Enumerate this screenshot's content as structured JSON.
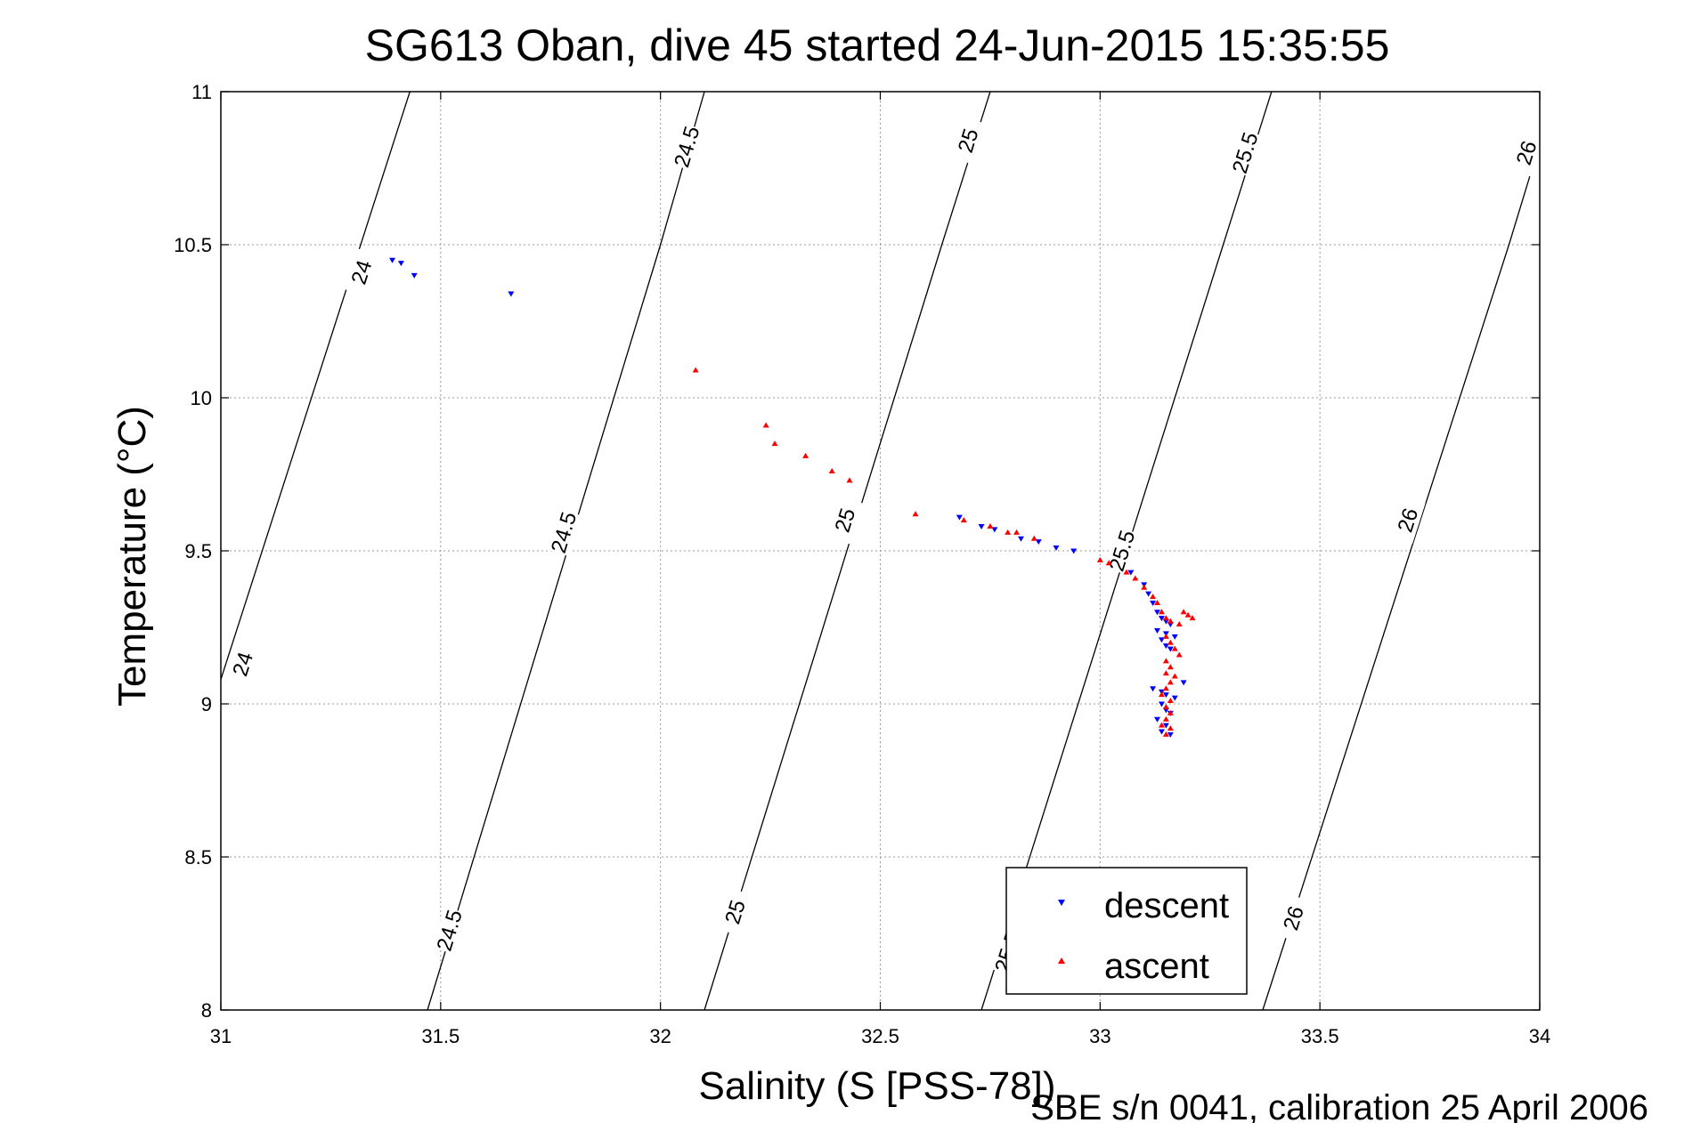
{
  "chart_data": {
    "type": "scatter",
    "title": "SG613 Oban, dive 45 started 24-Jun-2015 15:35:55",
    "xlabel": "Salinity (S [PSS-78])",
    "ylabel": "Temperature (°C)",
    "footer": "SBE s/n 0041, calibration 25 April 2006",
    "xlim": [
      31,
      34
    ],
    "ylim": [
      8,
      11
    ],
    "xticks": [
      "31",
      "31.5",
      "32",
      "32.5",
      "33",
      "33.5",
      "34"
    ],
    "yticks": [
      "8",
      "8.5",
      "9",
      "9.5",
      "10",
      "10.5",
      "11"
    ],
    "grid": true,
    "legend_position": "bottom-right",
    "density_contours": [
      {
        "label": "24",
        "points": [
          [
            31.0,
            9.08
          ],
          [
            31.43,
            11.0
          ]
        ],
        "label_positions": [
          [
            31.32,
            10.41
          ],
          [
            31.05,
            9.13
          ]
        ]
      },
      {
        "label": "24.5",
        "points": [
          [
            31.47,
            8.0
          ],
          [
            32.0,
            10.5
          ],
          [
            32.1,
            11.0
          ]
        ],
        "label_positions": [
          [
            31.52,
            8.26
          ],
          [
            31.78,
            9.56
          ],
          [
            32.06,
            10.82
          ]
        ]
      },
      {
        "label": "25",
        "points": [
          [
            32.1,
            8.0
          ],
          [
            32.64,
            10.5
          ],
          [
            32.75,
            11.0
          ]
        ],
        "label_positions": [
          [
            32.17,
            8.32
          ],
          [
            32.42,
            9.6
          ],
          [
            32.7,
            10.84
          ]
        ]
      },
      {
        "label": "25.5",
        "points": [
          [
            32.73,
            8.0
          ],
          [
            33.28,
            10.5
          ],
          [
            33.39,
            11.0
          ]
        ],
        "label_positions": [
          [
            32.79,
            8.19
          ],
          [
            33.05,
            9.5
          ],
          [
            33.33,
            10.8
          ]
        ]
      },
      {
        "label": "26",
        "points": [
          [
            33.37,
            8.0
          ],
          [
            33.93,
            10.5
          ],
          [
            34.0,
            10.83
          ]
        ],
        "label_positions": [
          [
            33.44,
            8.3
          ],
          [
            33.7,
            9.6
          ],
          [
            33.97,
            10.8
          ]
        ]
      }
    ],
    "series": [
      {
        "name": "descent",
        "color": "#0000ff",
        "marker": "triangle-down",
        "x": [
          31.39,
          31.41,
          31.44,
          31.66,
          32.68,
          32.73,
          32.76,
          32.82,
          32.86,
          32.9,
          32.94,
          33.07,
          33.1,
          33.11,
          33.12,
          33.13,
          33.14,
          33.15,
          33.16,
          33.13,
          33.15,
          33.17,
          33.14,
          33.15,
          33.16,
          33.19,
          33.12,
          33.14,
          33.15,
          33.17,
          33.14,
          33.15,
          33.16,
          33.13,
          33.15,
          33.14,
          33.16
        ],
        "y": [
          10.45,
          10.44,
          10.4,
          10.34,
          9.61,
          9.58,
          9.57,
          9.54,
          9.53,
          9.51,
          9.5,
          9.43,
          9.39,
          9.36,
          9.33,
          9.3,
          9.28,
          9.27,
          9.26,
          9.24,
          9.23,
          9.22,
          9.21,
          9.19,
          9.18,
          9.07,
          9.05,
          9.04,
          9.03,
          9.02,
          9.0,
          8.98,
          8.97,
          8.95,
          8.93,
          8.91,
          8.9
        ]
      },
      {
        "name": "ascent",
        "color": "#ff0000",
        "marker": "triangle-up",
        "x": [
          32.08,
          32.24,
          32.26,
          32.33,
          32.39,
          32.43,
          32.58,
          32.69,
          32.75,
          32.79,
          32.81,
          32.85,
          33.0,
          33.02,
          33.06,
          33.08,
          33.1,
          33.12,
          33.13,
          33.14,
          33.15,
          33.16,
          33.18,
          33.19,
          33.2,
          33.21,
          33.15,
          33.16,
          33.17,
          33.18,
          33.15,
          33.16,
          33.15,
          33.17,
          33.16,
          33.15,
          33.14,
          33.16,
          33.15,
          33.16,
          33.15,
          33.14,
          33.16,
          33.15
        ],
        "y": [
          10.09,
          9.91,
          9.85,
          9.81,
          9.76,
          9.73,
          9.62,
          9.6,
          9.58,
          9.56,
          9.56,
          9.54,
          9.47,
          9.46,
          9.43,
          9.41,
          9.38,
          9.35,
          9.33,
          9.3,
          9.28,
          9.27,
          9.26,
          9.3,
          9.29,
          9.28,
          9.22,
          9.2,
          9.18,
          9.16,
          9.14,
          9.12,
          9.1,
          9.09,
          9.07,
          9.05,
          9.03,
          9.01,
          8.99,
          8.97,
          8.95,
          8.93,
          8.92,
          8.9
        ]
      }
    ]
  }
}
